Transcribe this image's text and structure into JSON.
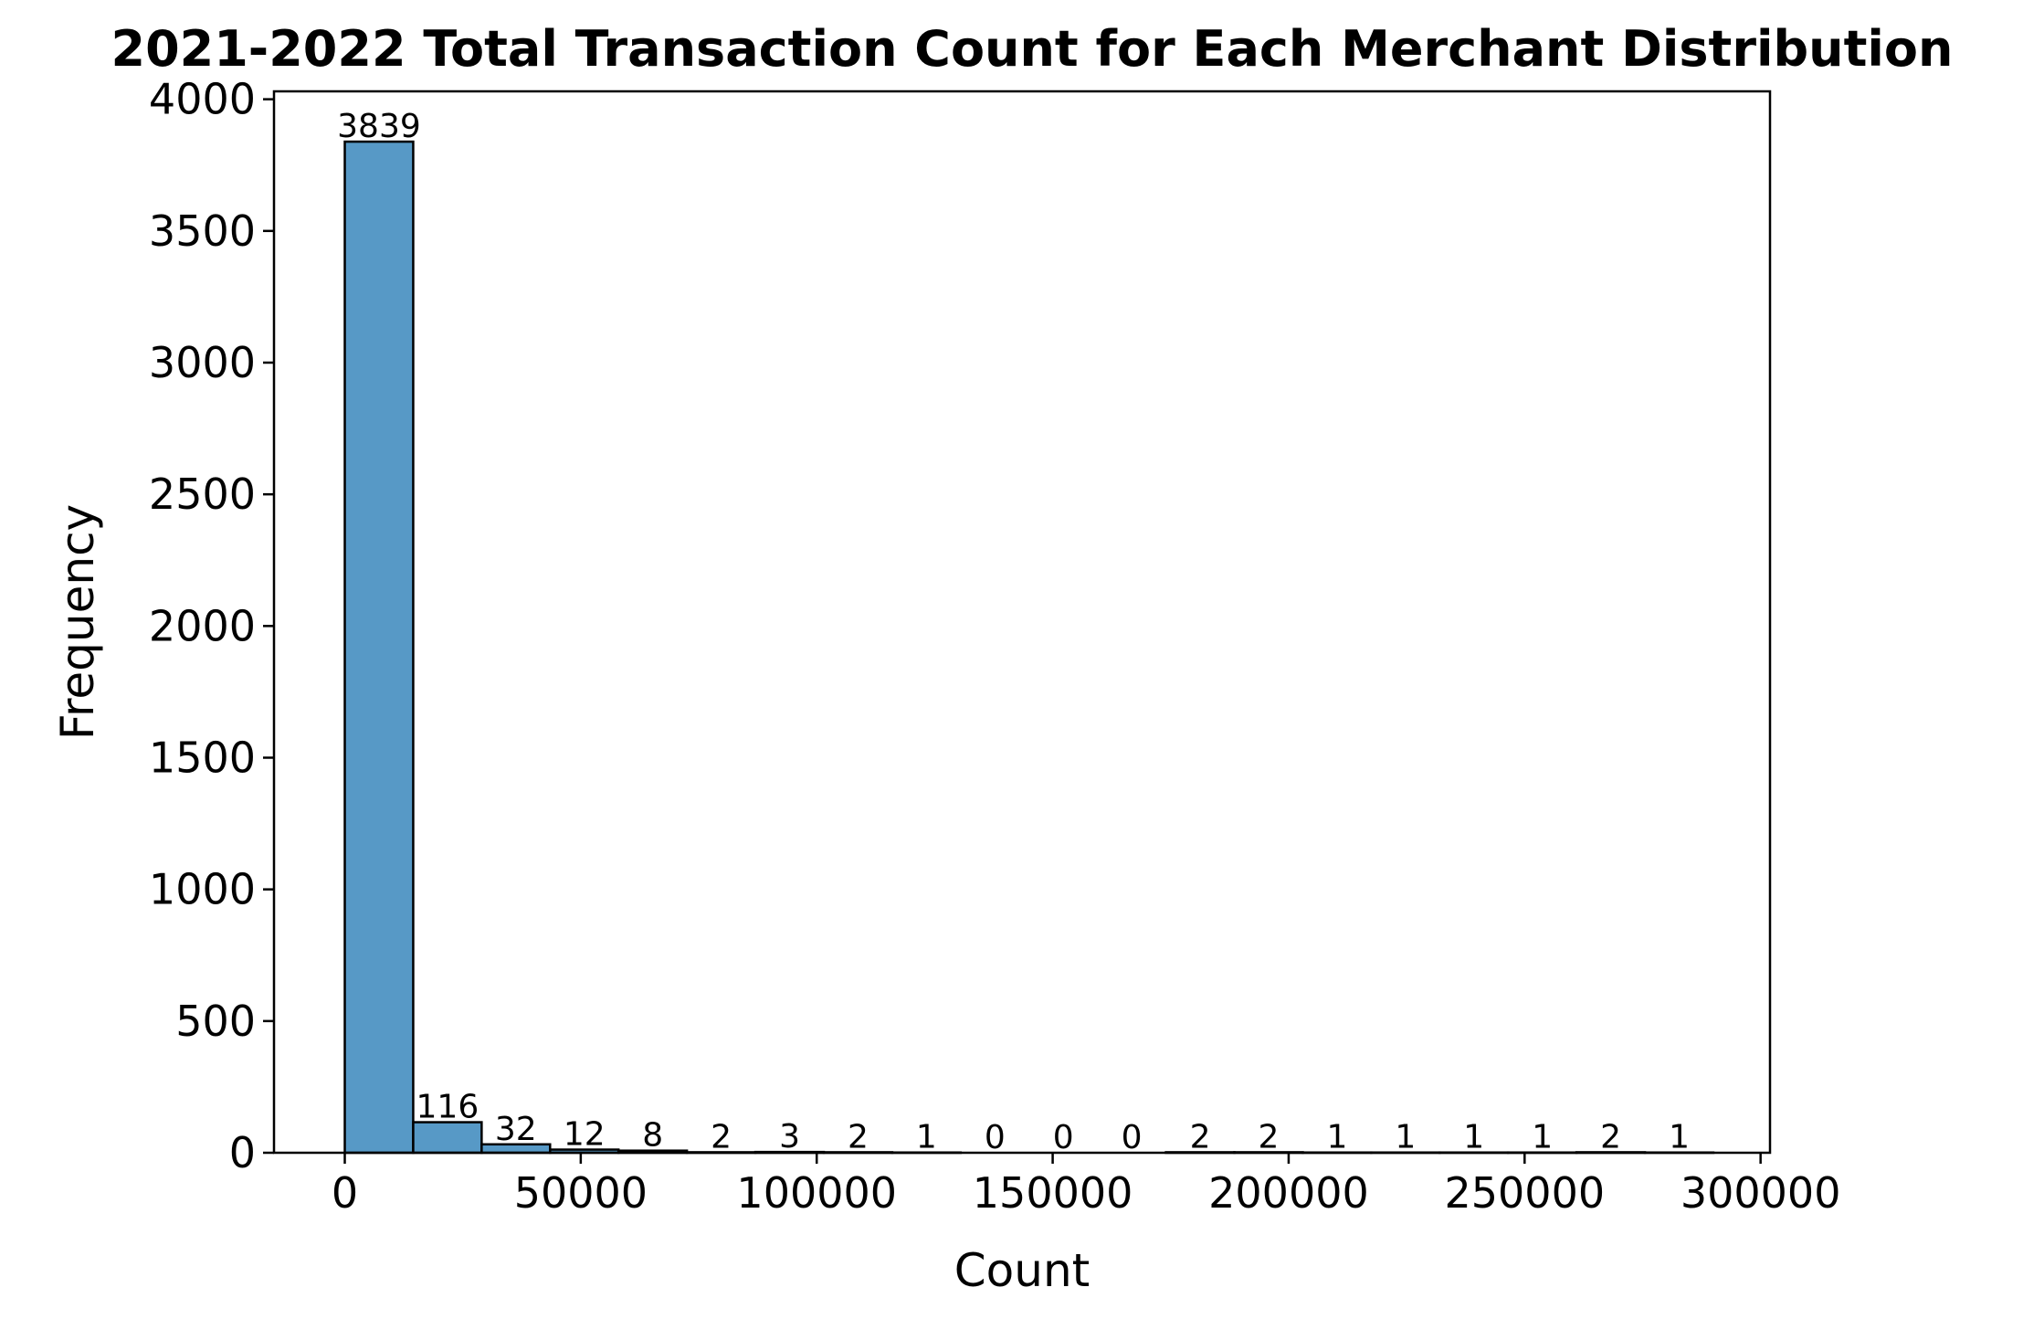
{
  "chart_data": {
    "type": "bar",
    "title": "2021-2022 Total Transaction Count for Each Merchant Distribution",
    "xlabel": "Count",
    "ylabel": "Frequency",
    "xlim": [
      -15000,
      302000
    ],
    "ylim": [
      0,
      4030
    ],
    "bin_edges": [
      0,
      14500,
      29000,
      43500,
      58000,
      72500,
      87000,
      101500,
      116000,
      130500,
      145000,
      159500,
      174000,
      188500,
      203000,
      217500,
      232000,
      246500,
      261000,
      275500,
      290000
    ],
    "values": [
      3839,
      116,
      32,
      12,
      8,
      2,
      3,
      2,
      1,
      0,
      0,
      0,
      2,
      2,
      1,
      1,
      1,
      1,
      2,
      1
    ],
    "value_labels": [
      "3839",
      "116",
      "32",
      "12",
      "8",
      "2",
      "3",
      "2",
      "1",
      "0",
      "0",
      "0",
      "2",
      "2",
      "1",
      "1",
      "1",
      "1",
      "2",
      "1"
    ],
    "xticks": [
      0,
      50000,
      100000,
      150000,
      200000,
      250000,
      300000
    ],
    "xtick_labels": [
      "0",
      "50000",
      "100000",
      "150000",
      "200000",
      "250000",
      "300000"
    ],
    "yticks": [
      0,
      500,
      1000,
      1500,
      2000,
      2500,
      3000,
      3500,
      4000
    ],
    "ytick_labels": [
      "0",
      "500",
      "1000",
      "1500",
      "2000",
      "2500",
      "3000",
      "3500",
      "4000"
    ],
    "grid": false,
    "legend": "none",
    "colors": {
      "bar_fill": "#5799c6",
      "bar_edge": "#000000"
    }
  }
}
